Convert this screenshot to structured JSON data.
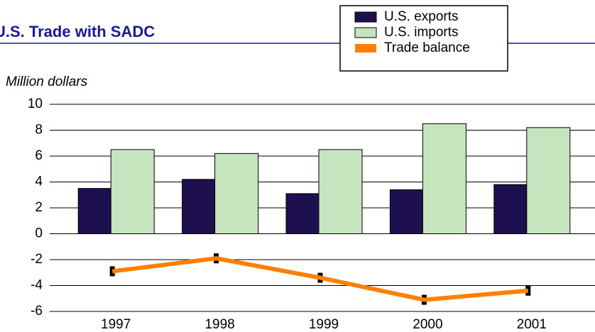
{
  "chart_data": {
    "type": "bar-line",
    "title": "U.S. Trade with SADC",
    "y_label": "Million dollars",
    "categories": [
      "1997",
      "1998",
      "1999",
      "2000",
      "2001"
    ],
    "series": [
      {
        "name": "U.S. exports",
        "color": "#1e0f4e",
        "kind": "bar",
        "values": [
          3.5,
          4.2,
          3.1,
          3.4,
          3.8
        ]
      },
      {
        "name": "U.S. imports",
        "color": "#c6e4bd",
        "kind": "bar",
        "values": [
          6.5,
          6.2,
          6.5,
          8.5,
          8.2
        ]
      },
      {
        "name": "Trade balance",
        "color": "#ff8000",
        "kind": "line",
        "values": [
          -2.9,
          -1.9,
          -3.4,
          -5.1,
          -4.4
        ]
      }
    ],
    "ylim": [
      -6,
      10
    ],
    "yticks": [
      -6,
      -4,
      -2,
      0,
      2,
      4,
      6,
      8,
      10
    ],
    "grid": true,
    "legend": "top-right"
  }
}
